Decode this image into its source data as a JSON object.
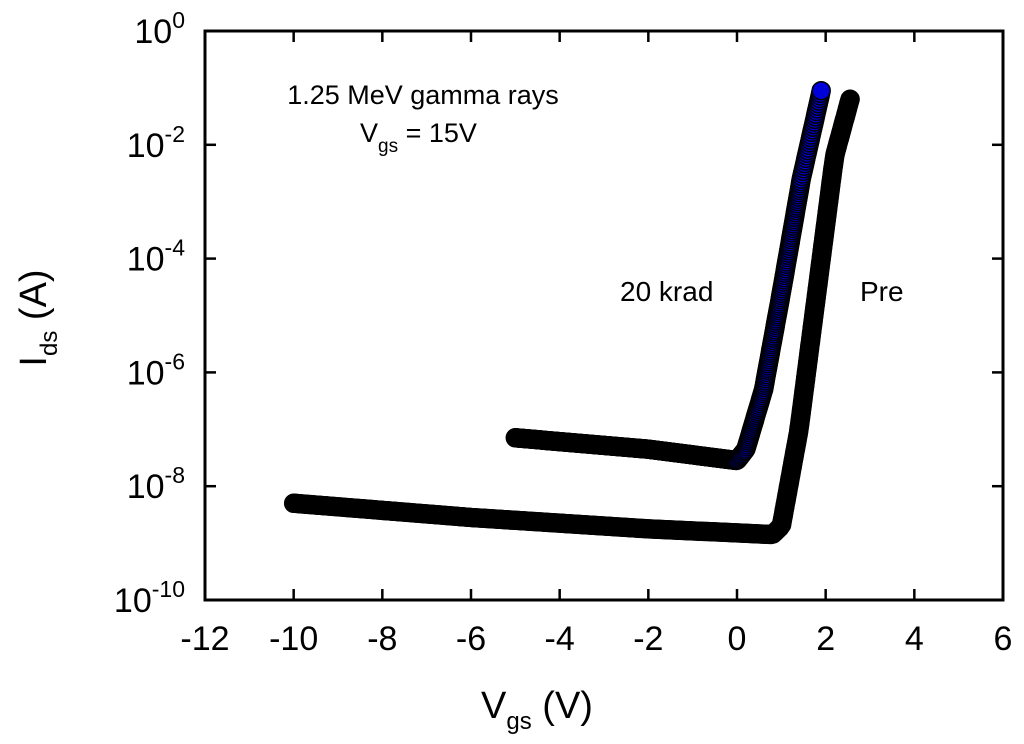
{
  "chart_data": {
    "type": "scatter",
    "title": "",
    "xlabel": {
      "main": "V",
      "sub": "gs",
      "unit": " (V)"
    },
    "ylabel": {
      "main": "I",
      "sub": "ds",
      "unit": " (A)"
    },
    "xlim": [
      -12,
      6
    ],
    "ylim_exp": [
      -10,
      0
    ],
    "y_scale": "log",
    "x_ticks": [
      -12,
      -10,
      -8,
      -6,
      -4,
      -2,
      0,
      2,
      4,
      6
    ],
    "x_tick_labels": [
      "-12",
      "-10",
      "-8",
      "-6",
      "-4",
      "-2",
      "0",
      "2",
      "4",
      "6"
    ],
    "y_tick_exps": [
      0,
      -2,
      -4,
      -6,
      -8,
      -10
    ],
    "y_tick_exp_labels": [
      "0",
      "-2",
      "-4",
      "-6",
      "-8",
      "-10"
    ],
    "y_tick_base": "10",
    "annotation": {
      "line1": "1.25 MeV gamma rays",
      "line2_main": "V",
      "line2_sub": "gs",
      "line2_rest": " = 15V"
    },
    "series": [
      {
        "name": "Pre",
        "label": "Pre",
        "marker_color": "#000000",
        "edge_color": "#000000",
        "knots_log10": [
          [
            -10,
            -8.3
          ],
          [
            -6,
            -8.55
          ],
          [
            -2,
            -8.75
          ],
          [
            0.8,
            -8.85
          ],
          [
            1.0,
            -8.7
          ],
          [
            1.4,
            -7.0
          ],
          [
            1.8,
            -4.6
          ],
          [
            2.2,
            -2.2
          ],
          [
            2.55,
            -1.2
          ]
        ],
        "x_min": -10,
        "x_max": 2.55
      },
      {
        "name": "20 krad",
        "label": "20 krad",
        "marker_color": "#0000d8",
        "edge_color": "#000000",
        "knots_log10": [
          [
            -5,
            -7.15
          ],
          [
            -2,
            -7.35
          ],
          [
            0,
            -7.55
          ],
          [
            0.2,
            -7.35
          ],
          [
            0.6,
            -6.3
          ],
          [
            1.0,
            -4.6
          ],
          [
            1.45,
            -2.6
          ],
          [
            1.9,
            -1.05
          ]
        ],
        "x_min": -5,
        "x_max": 1.9
      }
    ]
  }
}
